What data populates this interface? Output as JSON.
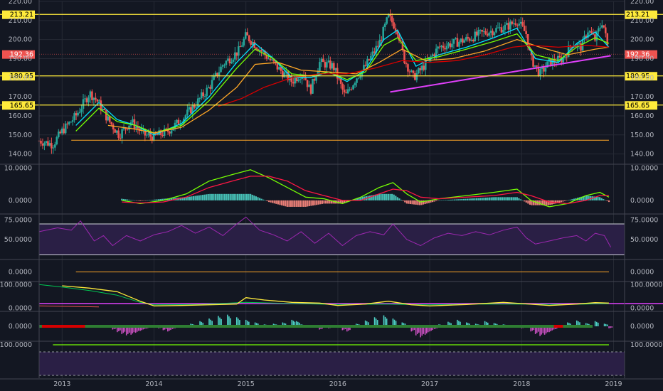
{
  "chart_data": {
    "type": "line",
    "colors": {
      "background": "#131722",
      "grid": "#262a35",
      "separator": "#434651",
      "axis_text": "#b2b5be",
      "candle_up": "#26a69a",
      "candle_down": "#ef5350",
      "level_line": "#ffeb3b",
      "trendline": "#e040fb",
      "ma_fast": "#00e5ff",
      "ma_mid": "#76ff03",
      "ma_slow": "#ffa726",
      "ma_long": "#d50000",
      "macd_line": "#76ff03",
      "signal_line": "#ff1744",
      "rsi_line": "#9c27b0",
      "rsi_band": "#2a1f45",
      "stoch_k": "#ffeb3b",
      "stoch_d": "#00c853",
      "bottom_band": "#2a1f45"
    },
    "x_axis": {
      "labels": [
        "2013",
        "2014",
        "2015",
        "2016",
        "2017",
        "2018",
        "2019"
      ],
      "range": [
        2012.75,
        2019.12
      ]
    },
    "price_pane": {
      "ylim": [
        135,
        220
      ],
      "tick_labels": [
        "220.00",
        "210.00",
        "200.00",
        "190.00",
        "180.00",
        "170.00",
        "160.00",
        "150.00",
        "140.00"
      ],
      "tick_values": [
        220,
        210,
        200,
        190,
        180,
        170,
        160,
        150,
        140
      ],
      "levels": [
        {
          "value": 213.21,
          "label": "213.21"
        },
        {
          "value": 180.95,
          "label": "180.95"
        },
        {
          "value": 165.65,
          "label": "165.65"
        }
      ],
      "last_price": {
        "value": 192.36,
        "label": "192.36"
      },
      "trendline": {
        "x": [
          2016.57,
          2018.97
        ],
        "y": [
          172.5,
          191.5
        ]
      },
      "flat_line": {
        "x": [
          2013.1,
          2018.95
        ],
        "y": [
          147.2,
          147.2
        ]
      },
      "close": {
        "x": [
          2012.75,
          2012.9,
          2013.0,
          2013.15,
          2013.3,
          2013.38,
          2013.5,
          2013.62,
          2013.75,
          2013.9,
          2014.0,
          2014.15,
          2014.3,
          2014.45,
          2014.6,
          2014.75,
          2014.92,
          2015.0,
          2015.15,
          2015.25,
          2015.35,
          2015.5,
          2015.62,
          2015.7,
          2015.8,
          2015.95,
          2016.08,
          2016.2,
          2016.3,
          2016.45,
          2016.55,
          2016.65,
          2016.72,
          2016.82,
          2016.9,
          2017.0,
          2017.1,
          2017.25,
          2017.4,
          2017.55,
          2017.7,
          2017.85,
          2017.95,
          2018.05,
          2018.1,
          2018.2,
          2018.3,
          2018.45,
          2018.55,
          2018.65,
          2018.72,
          2018.8,
          2018.88,
          2018.95
        ],
        "y": [
          147,
          145,
          152,
          160,
          172,
          168,
          158,
          150,
          157,
          150,
          149,
          152,
          158,
          166,
          175,
          187,
          194,
          202,
          195,
          190,
          185,
          178,
          183,
          173,
          188,
          186,
          170,
          180,
          186,
          198,
          212,
          205,
          190,
          180,
          184,
          190,
          196,
          198,
          200,
          203,
          205,
          207,
          210,
          203,
          190,
          182,
          188,
          190,
          198,
          196,
          205,
          200,
          210,
          192.36
        ]
      },
      "moving_averages": [
        {
          "x": [
            2013.15,
            2013.4,
            2013.6,
            2013.8,
            2014.0,
            2014.3,
            2014.6,
            2014.9,
            2015.1,
            2015.3,
            2015.5,
            2015.7,
            2015.9,
            2016.1,
            2016.3,
            2016.5,
            2016.65,
            2016.85,
            2017.1,
            2017.4,
            2017.7,
            2017.95,
            2018.15,
            2018.4,
            2018.6,
            2018.8,
            2018.95
          ],
          "y": [
            155,
            167,
            158,
            155,
            150,
            156,
            170,
            188,
            198,
            190,
            180,
            180,
            183,
            178,
            184,
            200,
            205,
            186,
            192,
            196,
            201,
            206,
            190,
            188,
            198,
            204,
            196
          ]
        },
        {
          "x": [
            2013.15,
            2013.4,
            2013.6,
            2013.8,
            2014.0,
            2014.3,
            2014.6,
            2014.9,
            2015.1,
            2015.3,
            2015.5,
            2015.7,
            2015.9,
            2016.1,
            2016.3,
            2016.5,
            2016.65,
            2016.85,
            2017.1,
            2017.4,
            2017.7,
            2017.95,
            2018.15,
            2018.4,
            2018.6,
            2018.8,
            2018.95
          ],
          "y": [
            152,
            164,
            157,
            155,
            151,
            155,
            168,
            185,
            195,
            190,
            182,
            181,
            183,
            179,
            183,
            197,
            201,
            189,
            191,
            195,
            199,
            203,
            192,
            189,
            196,
            201,
            198
          ]
        },
        {
          "x": [
            2013.5,
            2013.8,
            2014.0,
            2014.3,
            2014.6,
            2014.9,
            2015.1,
            2015.35,
            2015.6,
            2015.9,
            2016.2,
            2016.45,
            2016.7,
            2016.95,
            2017.25,
            2017.6,
            2017.95,
            2018.2,
            2018.5,
            2018.8,
            2018.95
          ],
          "y": [
            155,
            153,
            151,
            154,
            163,
            175,
            187,
            188,
            184,
            183,
            182,
            188,
            195,
            189,
            190,
            194,
            200,
            196,
            192,
            195,
            196
          ]
        },
        {
          "x": [
            2014.7,
            2014.95,
            2015.2,
            2015.5,
            2015.8,
            2016.1,
            2016.4,
            2016.7,
            2017.0,
            2017.3,
            2017.6,
            2017.9,
            2018.1,
            2018.4,
            2018.7,
            2018.95
          ],
          "y": [
            165,
            169,
            175,
            180,
            182,
            182,
            185,
            189,
            188,
            189,
            192,
            196,
            197,
            196,
            197,
            196
          ]
        }
      ]
    },
    "macd_pane": {
      "tick_labels": [
        "10.0000",
        "0.0000"
      ],
      "tick_values": [
        10,
        0
      ],
      "ylim": [
        -4,
        11
      ],
      "macd": {
        "x": [
          2013.65,
          2013.85,
          2014.1,
          2014.35,
          2014.6,
          2014.85,
          2015.05,
          2015.25,
          2015.45,
          2015.65,
          2015.85,
          2016.05,
          2016.25,
          2016.45,
          2016.6,
          2016.75,
          2016.9,
          2017.1,
          2017.4,
          2017.7,
          2017.95,
          2018.1,
          2018.3,
          2018.5,
          2018.7,
          2018.85,
          2018.95
        ],
        "y": [
          0,
          -1,
          0,
          2,
          6,
          8,
          9.5,
          7,
          4,
          1,
          0.5,
          -1,
          1,
          4,
          5.5,
          2,
          -0.5,
          0.5,
          1.5,
          2.5,
          3.5,
          0,
          -2,
          -1,
          1.5,
          2.5,
          1
        ]
      },
      "signal": {
        "x": [
          2013.65,
          2013.85,
          2014.1,
          2014.35,
          2014.6,
          2014.85,
          2015.05,
          2015.25,
          2015.45,
          2015.65,
          2015.85,
          2016.05,
          2016.25,
          2016.45,
          2016.6,
          2016.75,
          2016.9,
          2017.1,
          2017.4,
          2017.7,
          2017.95,
          2018.1,
          2018.3,
          2018.5,
          2018.7,
          2018.85,
          2018.95
        ],
        "y": [
          -0.5,
          -0.8,
          -0.5,
          1,
          4,
          6,
          7.5,
          7.5,
          6,
          3,
          1.5,
          0,
          0,
          2,
          3.5,
          3,
          1,
          0.5,
          1,
          1.5,
          2.5,
          1.5,
          -0.5,
          -1,
          0,
          1.5,
          1.5
        ]
      }
    },
    "rsi_pane": {
      "tick_labels": [
        "75.0000",
        "50.0000"
      ],
      "tick_values": [
        75,
        50
      ],
      "ylim": [
        25,
        82
      ],
      "upper_band": 70,
      "lower_band": 30,
      "values": {
        "x": [
          2012.75,
          2012.95,
          2013.1,
          2013.2,
          2013.35,
          2013.45,
          2013.55,
          2013.7,
          2013.85,
          2014.0,
          2014.15,
          2014.3,
          2014.45,
          2014.6,
          2014.75,
          2014.9,
          2015.0,
          2015.15,
          2015.3,
          2015.45,
          2015.6,
          2015.75,
          2015.9,
          2016.05,
          2016.2,
          2016.35,
          2016.5,
          2016.6,
          2016.75,
          2016.9,
          2017.05,
          2017.2,
          2017.35,
          2017.5,
          2017.65,
          2017.8,
          2017.95,
          2018.05,
          2018.15,
          2018.3,
          2018.45,
          2018.6,
          2018.7,
          2018.8,
          2018.9,
          2018.97
        ],
        "y": [
          60,
          65,
          62,
          74,
          48,
          55,
          42,
          55,
          48,
          56,
          60,
          68,
          58,
          66,
          55,
          70,
          79,
          62,
          56,
          48,
          60,
          45,
          58,
          42,
          55,
          60,
          56,
          70,
          50,
          42,
          52,
          58,
          55,
          60,
          56,
          62,
          66,
          52,
          44,
          48,
          52,
          55,
          48,
          58,
          55,
          40
        ]
      }
    },
    "aux_pane": {
      "tick_labels": [
        "0.0000"
      ],
      "tick_values": [
        0
      ],
      "line": {
        "x": [
          2013.15,
          2018.95
        ],
        "y": [
          0,
          0
        ]
      }
    },
    "stoch_pane": {
      "tick_labels": [
        "100.0000",
        "0.0000"
      ],
      "tick_values": [
        100,
        0
      ],
      "ylim": [
        -10,
        110
      ],
      "reference": 20,
      "k": {
        "x": [
          2013.0,
          2013.3,
          2013.6,
          2013.85,
          2014.0,
          2014.3,
          2014.6,
          2014.9,
          2015.0,
          2015.2,
          2015.5,
          2015.8,
          2016.0,
          2016.3,
          2016.55,
          2016.8,
          2017.0,
          2017.4,
          2017.8,
          2018.0,
          2018.3,
          2018.6,
          2018.8,
          2018.95
        ],
        "y": [
          95,
          85,
          70,
          30,
          10,
          12,
          15,
          18,
          45,
          35,
          25,
          22,
          12,
          18,
          30,
          15,
          10,
          16,
          25,
          20,
          12,
          18,
          24,
          22
        ]
      },
      "d": {
        "x": [
          2012.75,
          2013.0,
          2013.3,
          2013.6,
          2013.85,
          2014.0,
          2014.5,
          2015.0,
          2015.5,
          2016.0,
          2016.5,
          2017.0,
          2017.5,
          2018.0,
          2018.5,
          2018.95
        ],
        "y": [
          100,
          90,
          75,
          55,
          25,
          15,
          16,
          25,
          20,
          16,
          18,
          15,
          18,
          18,
          16,
          20
        ]
      },
      "floor": {
        "x": [
          2012.75,
          2013.4
        ],
        "y": [
          10,
          6
        ]
      }
    },
    "osc_pane": {
      "tick_labels": [
        "0.0000"
      ],
      "tick_values": [
        0
      ],
      "ylim": [
        -2.2,
        2.2
      ],
      "histogram": {
        "x": [
          2013.55,
          2013.6,
          2013.65,
          2013.7,
          2013.75,
          2013.8,
          2013.85,
          2013.9,
          2013.95,
          2014.0,
          2014.05,
          2014.1,
          2014.15,
          2014.2,
          2014.4,
          2014.5,
          2014.6,
          2014.7,
          2014.8,
          2014.9,
          2015.0,
          2015.1,
          2015.2,
          2015.3,
          2015.4,
          2015.5,
          2015.55,
          2015.6,
          2015.7,
          2015.8,
          2015.9,
          2015.95,
          2016.0,
          2016.05,
          2016.1,
          2016.2,
          2016.3,
          2016.4,
          2016.5,
          2016.6,
          2016.7,
          2016.8,
          2016.85,
          2016.9,
          2016.95,
          2017.0,
          2017.05,
          2017.1,
          2017.2,
          2017.3,
          2017.4,
          2017.5,
          2017.6,
          2017.7,
          2017.8,
          2017.9,
          2018.0,
          2018.1,
          2018.15,
          2018.2,
          2018.25,
          2018.3,
          2018.35,
          2018.4,
          2018.5,
          2018.6,
          2018.7,
          2018.8,
          2018.9,
          2018.95
        ],
        "y": [
          -0.5,
          -0.9,
          -1.2,
          -1.4,
          -1.3,
          -1.0,
          -0.7,
          -0.4,
          -0.2,
          0.1,
          -0.3,
          -0.6,
          -0.8,
          -0.4,
          0.4,
          0.8,
          1.2,
          1.6,
          1.8,
          1.4,
          1.0,
          0.6,
          0.3,
          0.4,
          0.6,
          1.0,
          0.8,
          0.3,
          -0.2,
          -0.5,
          -0.3,
          -0.1,
          0.2,
          -0.6,
          -0.8,
          0.4,
          0.9,
          1.4,
          1.7,
          1.2,
          0.6,
          -0.8,
          -1.4,
          -1.7,
          -1.3,
          -0.8,
          -0.4,
          0.3,
          0.7,
          1.0,
          0.6,
          0.4,
          0.8,
          0.5,
          0.3,
          0.2,
          -0.3,
          -0.8,
          -1.2,
          -1.5,
          -1.3,
          -0.9,
          -0.5,
          0.2,
          0.6,
          0.9,
          0.5,
          0.8,
          0.4,
          -0.3
        ]
      },
      "red_dots": {
        "x": [
          2012.78,
          2013.25
        ],
        "y": [
          0,
          0
        ]
      },
      "red_dots_late": {
        "x": [
          2018.35,
          2018.45
        ],
        "y": [
          0,
          0
        ]
      }
    },
    "bottom_pane": {
      "tick_labels": [
        "100.0000"
      ],
      "tick_values": [
        100
      ],
      "line": {
        "x": [
          2012.9,
          2018.95
        ],
        "y": [
          100,
          100
        ]
      }
    }
  }
}
